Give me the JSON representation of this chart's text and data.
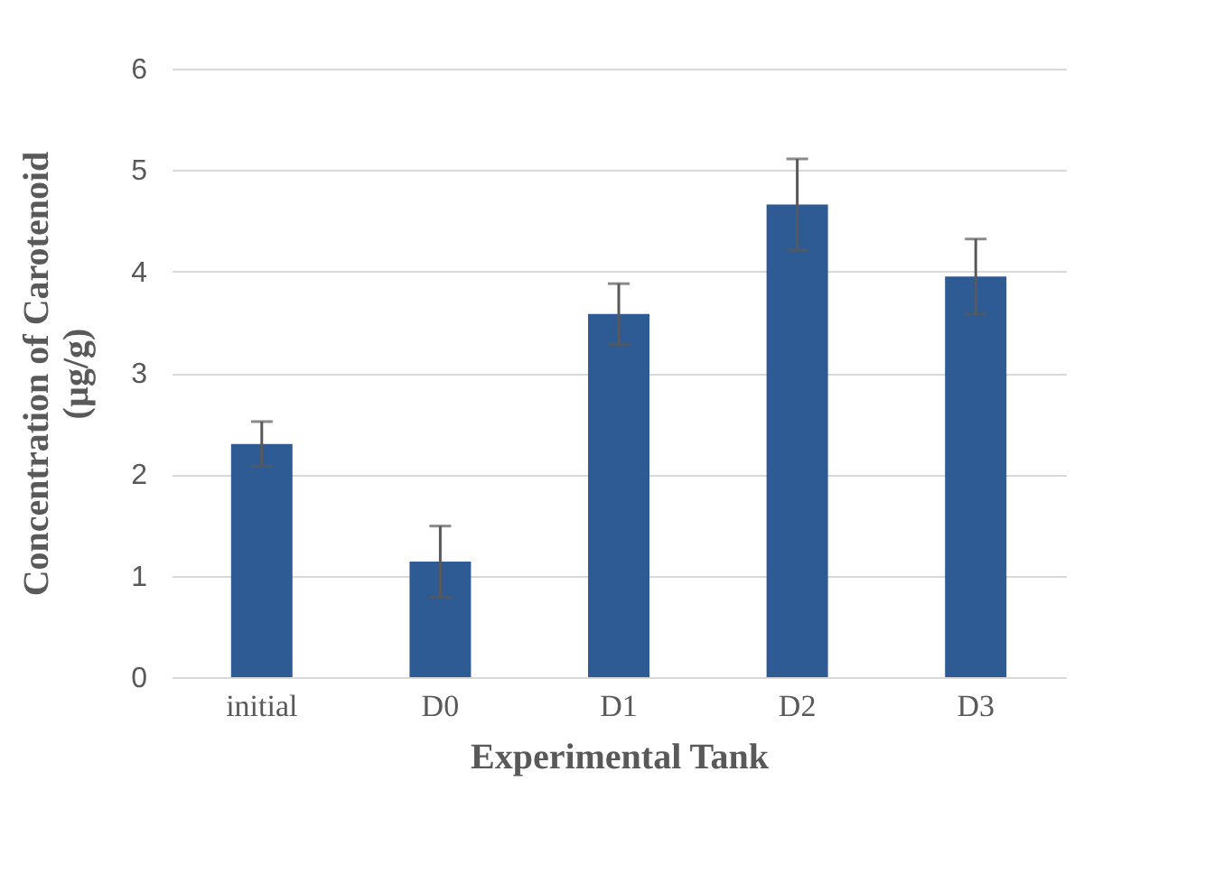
{
  "chart_data": {
    "type": "bar",
    "xlabel": "Experimental Tank",
    "ylabel": "Concentration of Carotenoid (µg/g)",
    "categories": [
      "initial",
      "D0",
      "D1",
      "D2",
      "D3"
    ],
    "values": [
      2.3,
      1.14,
      3.58,
      4.66,
      3.95
    ],
    "errors": [
      0.22,
      0.35,
      0.3,
      0.45,
      0.37
    ],
    "color": "#2e5b94",
    "ylim": [
      0,
      6
    ],
    "yticks": [
      0,
      1,
      2,
      3,
      4,
      5,
      6
    ],
    "grid": "y"
  }
}
